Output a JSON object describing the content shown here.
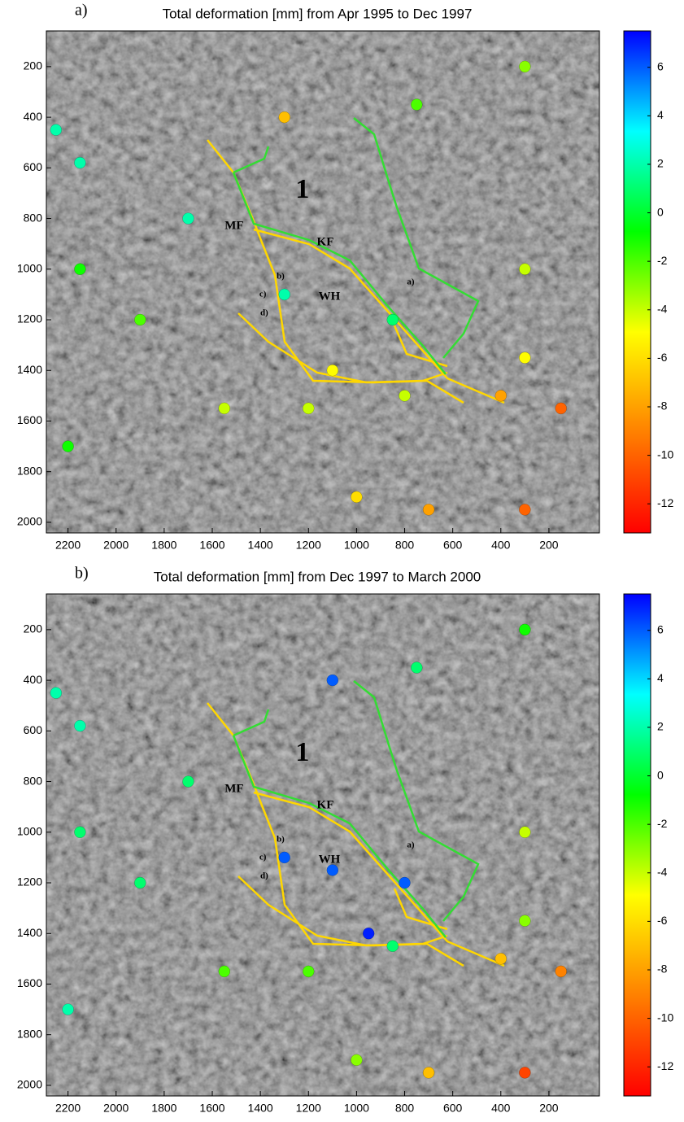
{
  "chart_data": [
    {
      "type": "scatter",
      "panel_label": "a)",
      "title": "Total deformation [mm] from Apr 1995 to Dec 1997",
      "xlim": [
        2290,
        -10
      ],
      "ylim": [
        2042,
        59
      ],
      "xticks": [
        2200,
        2000,
        1800,
        1600,
        1400,
        1200,
        1000,
        800,
        600,
        400,
        200
      ],
      "yticks": [
        200,
        400,
        600,
        800,
        1000,
        1200,
        1400,
        1600,
        1800,
        2000
      ],
      "x": [
        2250,
        2150,
        1700,
        300,
        300,
        750,
        1550,
        1200,
        800,
        1100,
        700,
        300,
        150,
        1300,
        1900,
        2150,
        1000,
        400,
        2200,
        300,
        850,
        1300
      ],
      "y": [
        450,
        580,
        800,
        200,
        1000,
        350,
        1550,
        1550,
        1500,
        1400,
        1950,
        1950,
        1550,
        400,
        1200,
        1000,
        1900,
        1500,
        1700,
        1350,
        1200,
        1100
      ],
      "values": [
        2,
        2,
        2,
        -3,
        -4,
        -2,
        -4,
        -4,
        -4,
        -5,
        -8,
        -10,
        -10,
        -7,
        -2,
        -1,
        -6,
        -8,
        -1,
        -5,
        1,
        2
      ],
      "clim": [
        -13.2,
        7.5
      ],
      "cticks": [
        6,
        4,
        2,
        0,
        -2,
        -4,
        -6,
        -8,
        -10,
        -12
      ],
      "colormap": [
        "#ff0000",
        "#ff8000",
        "#ffff00",
        "#00ff00",
        "#00ffff",
        "#0000ff"
      ],
      "annotations": [
        {
          "text": "1",
          "x": 1225,
          "y": 692,
          "color": "#22dd22"
        },
        {
          "text": "MF",
          "x": 1509,
          "y": 830,
          "color": "#ffd700"
        },
        {
          "text": "KF",
          "x": 1130,
          "y": 895,
          "color": "#ffd700"
        },
        {
          "text": "WH",
          "x": 1113,
          "y": 1110,
          "color": "#ffd700"
        },
        {
          "text": "a)",
          "x": 775,
          "y": 1052,
          "color": "#ffffff"
        },
        {
          "text": "b)",
          "x": 1316,
          "y": 1030,
          "color": "#ffffff"
        },
        {
          "text": "c)",
          "x": 1390,
          "y": 1100,
          "color": "#ffffff"
        },
        {
          "text": "d)",
          "x": 1384,
          "y": 1174,
          "color": "#ffffff"
        }
      ]
    },
    {
      "type": "scatter",
      "panel_label": "b)",
      "title": "Total deformation [mm] from  Dec 1997 to March 2000",
      "xlim": [
        2290,
        -10
      ],
      "ylim": [
        2042,
        59
      ],
      "xticks": [
        2200,
        2000,
        1800,
        1600,
        1400,
        1200,
        1000,
        800,
        600,
        400,
        200
      ],
      "yticks": [
        200,
        400,
        600,
        800,
        1000,
        1200,
        1400,
        1600,
        1800,
        2000
      ],
      "x": [
        2250,
        2150,
        1700,
        300,
        300,
        750,
        1550,
        1200,
        800,
        1100,
        950,
        700,
        300,
        150,
        1100,
        1900,
        2150,
        1000,
        400,
        2200,
        300,
        850,
        1300
      ],
      "y": [
        450,
        580,
        800,
        200,
        1000,
        350,
        1550,
        1550,
        1200,
        400,
        1400,
        1950,
        1950,
        1550,
        1150,
        1200,
        1000,
        1900,
        1500,
        1700,
        1350,
        1450,
        1100
      ],
      "values": [
        2,
        2,
        1,
        -1,
        -4,
        1,
        -2,
        -2,
        6,
        6,
        7,
        -7,
        -11,
        -9,
        6,
        1,
        1,
        -3,
        -7,
        2,
        -3,
        1,
        6
      ],
      "clim": [
        -13.2,
        7.5
      ],
      "cticks": [
        6,
        4,
        2,
        0,
        -2,
        -4,
        -6,
        -8,
        -10,
        -12
      ],
      "colormap": [
        "#ff0000",
        "#ff8000",
        "#ffff00",
        "#00ff00",
        "#00ffff",
        "#0000ff"
      ],
      "annotations": [
        {
          "text": "1",
          "x": 1225,
          "y": 692,
          "color": "#22dd22"
        },
        {
          "text": "MF",
          "x": 1509,
          "y": 830,
          "color": "#ffd700"
        },
        {
          "text": "KF",
          "x": 1130,
          "y": 895,
          "color": "#ffd700"
        },
        {
          "text": "WH",
          "x": 1113,
          "y": 1110,
          "color": "#ffd700"
        },
        {
          "text": "a)",
          "x": 775,
          "y": 1052,
          "color": "#ffffff"
        },
        {
          "text": "b)",
          "x": 1316,
          "y": 1030,
          "color": "#ffffff"
        },
        {
          "text": "c)",
          "x": 1390,
          "y": 1100,
          "color": "#ffffff"
        },
        {
          "text": "d)",
          "x": 1384,
          "y": 1174,
          "color": "#ffffff"
        }
      ]
    }
  ]
}
